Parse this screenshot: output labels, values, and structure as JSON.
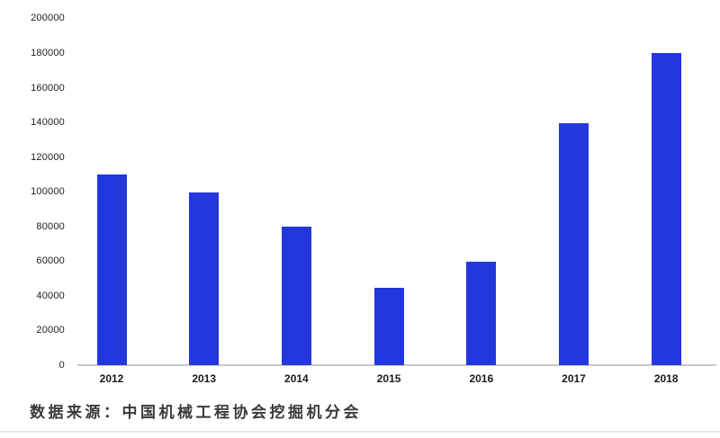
{
  "chart_data": {
    "type": "bar",
    "categories": [
      "2012",
      "2013",
      "2014",
      "2015",
      "2016",
      "2017",
      "2018"
    ],
    "values": [
      110000,
      100000,
      80000,
      45000,
      60000,
      140000,
      180000
    ],
    "title": "",
    "xlabel": "",
    "ylabel": "",
    "ylim": [
      0,
      200000
    ],
    "yticks": [
      0,
      20000,
      40000,
      60000,
      80000,
      100000,
      120000,
      140000,
      160000,
      180000,
      200000
    ],
    "grid": false,
    "legend": null,
    "bar_color": "#2337dd",
    "axis_color": "#c9c9c9",
    "tick_label_color": "#1b1b1b"
  },
  "source_note": {
    "label": "数据来源：中国机械工程协会挖掘机分会"
  }
}
